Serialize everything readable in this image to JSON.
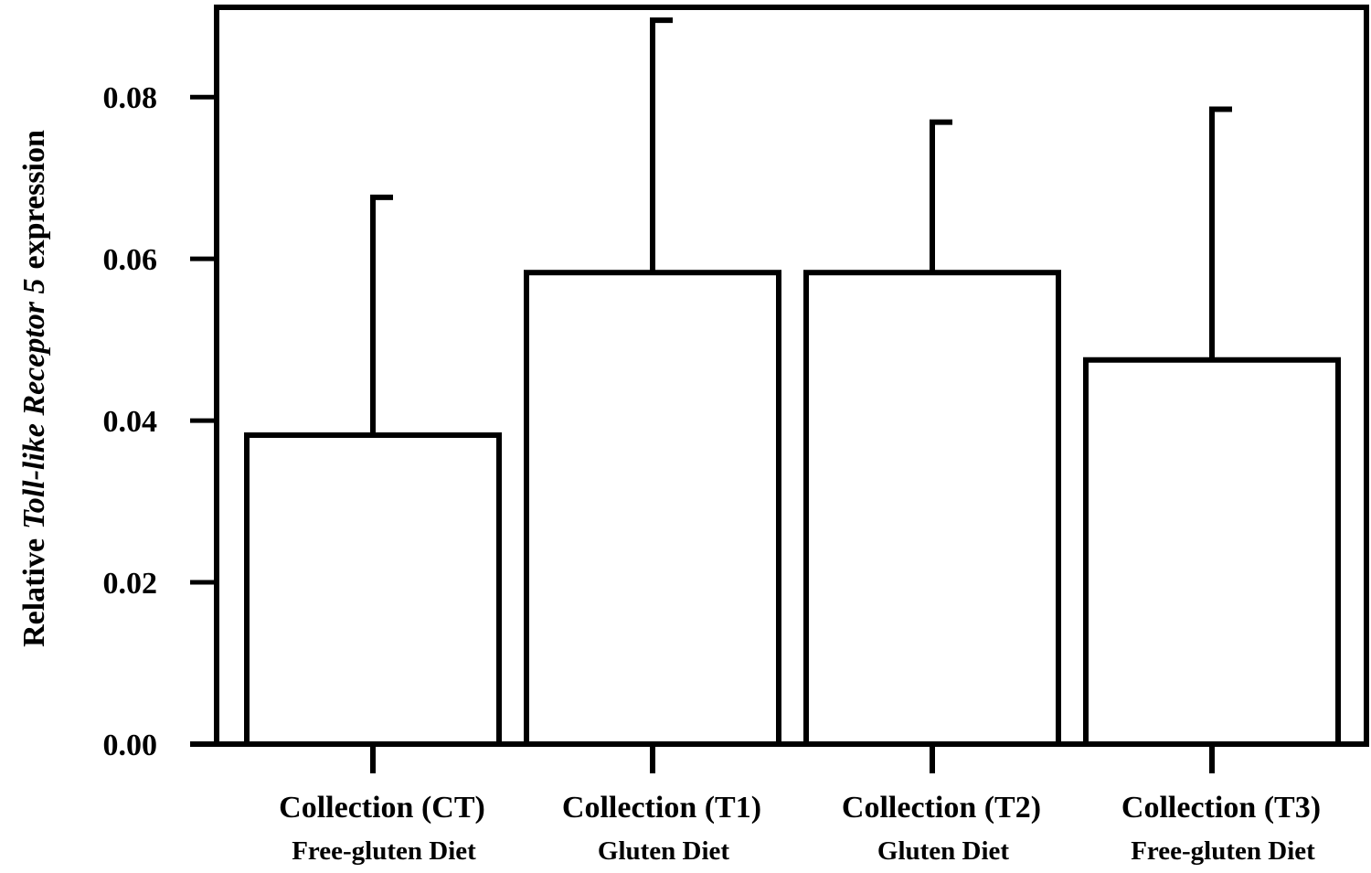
{
  "chart_data": {
    "type": "bar",
    "ylabel": {
      "prefix": "Relative",
      "italic": "Toll-like Receptor 5",
      "suffix": "expression"
    },
    "categories": [
      "Collection (CT)",
      "Collection (T1)",
      "Collection (T2)",
      "Collection (T3)"
    ],
    "category_sublabels": [
      "Free-gluten Diet",
      "Gluten Diet",
      "Gluten Diet",
      "Free-gluten Diet"
    ],
    "values": [
      0.0382,
      0.0583,
      0.0583,
      0.0475
    ],
    "errors": [
      0.0294,
      0.0312,
      0.0186,
      0.031
    ],
    "color": "#ffffff",
    "ylim": [
      0,
      0.0911
    ],
    "yticks": [
      {
        "value": 0,
        "label": "0.00"
      },
      {
        "value": 0.02,
        "label": "0.02"
      },
      {
        "value": 0.04,
        "label": "0.04"
      },
      {
        "value": 0.06,
        "label": "0.06"
      },
      {
        "value": 0.08,
        "label": "0.08"
      }
    ]
  }
}
